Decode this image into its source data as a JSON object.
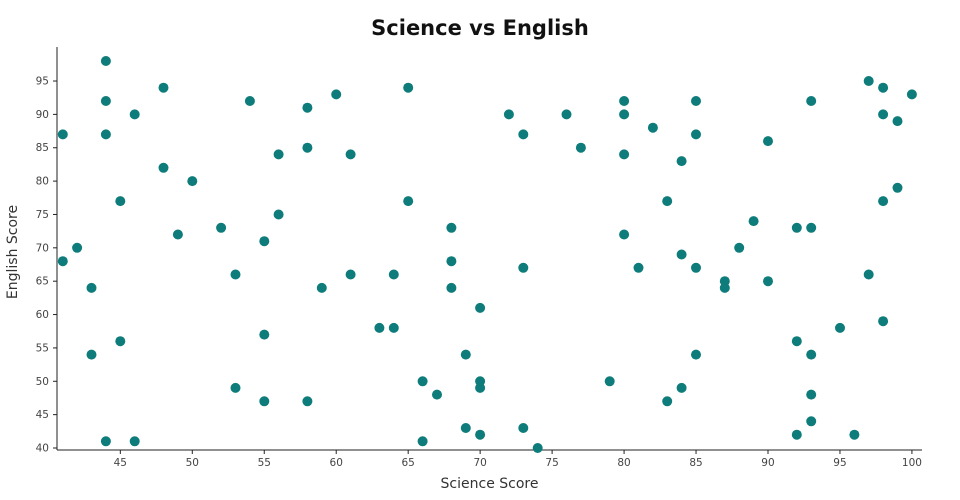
{
  "chart_data": {
    "type": "scatter",
    "title": "Science vs English",
    "xlabel": "Science Score",
    "ylabel": "English Score",
    "xlim": [
      40.6,
      100.7
    ],
    "ylim": [
      39.7,
      98.9
    ],
    "xticks": [
      45,
      50,
      55,
      60,
      65,
      70,
      75,
      80,
      85,
      90,
      95,
      100
    ],
    "yticks": [
      40,
      45,
      50,
      55,
      60,
      65,
      70,
      75,
      80,
      85,
      90,
      95
    ],
    "grid": false,
    "legend": "none",
    "marker_color": "#0e7c7b",
    "axis_color": "#222222",
    "tick_label_color": "#444444",
    "points": [
      [
        41,
        87
      ],
      [
        41,
        68
      ],
      [
        42,
        70
      ],
      [
        43,
        64
      ],
      [
        43,
        54
      ],
      [
        44,
        98
      ],
      [
        44,
        92
      ],
      [
        44,
        87
      ],
      [
        44,
        41
      ],
      [
        45,
        77
      ],
      [
        45,
        56
      ],
      [
        46,
        90
      ],
      [
        46,
        41
      ],
      [
        48,
        94
      ],
      [
        48,
        82
      ],
      [
        49,
        72
      ],
      [
        50,
        80
      ],
      [
        52,
        73
      ],
      [
        53,
        66
      ],
      [
        53,
        49
      ],
      [
        54,
        92
      ],
      [
        55,
        71
      ],
      [
        55,
        57
      ],
      [
        55,
        47
      ],
      [
        56,
        84
      ],
      [
        56,
        75
      ],
      [
        58,
        91
      ],
      [
        58,
        85
      ],
      [
        58,
        47
      ],
      [
        59,
        64
      ],
      [
        60,
        93
      ],
      [
        61,
        84
      ],
      [
        61,
        66
      ],
      [
        63,
        58
      ],
      [
        64,
        66
      ],
      [
        64,
        58
      ],
      [
        65,
        94
      ],
      [
        65,
        77
      ],
      [
        66,
        50
      ],
      [
        66,
        41
      ],
      [
        67,
        48
      ],
      [
        68,
        73
      ],
      [
        68,
        68
      ],
      [
        68,
        64
      ],
      [
        69,
        54
      ],
      [
        69,
        43
      ],
      [
        70,
        61
      ],
      [
        70,
        50
      ],
      [
        70,
        49
      ],
      [
        70,
        42
      ],
      [
        72,
        90
      ],
      [
        73,
        87
      ],
      [
        73,
        67
      ],
      [
        73,
        43
      ],
      [
        74,
        40
      ],
      [
        76,
        90
      ],
      [
        77,
        85
      ],
      [
        79,
        50
      ],
      [
        80,
        92
      ],
      [
        80,
        90
      ],
      [
        80,
        84
      ],
      [
        80,
        72
      ],
      [
        81,
        67
      ],
      [
        82,
        88
      ],
      [
        83,
        77
      ],
      [
        83,
        47
      ],
      [
        84,
        83
      ],
      [
        84,
        69
      ],
      [
        84,
        49
      ],
      [
        85,
        92
      ],
      [
        85,
        87
      ],
      [
        85,
        67
      ],
      [
        85,
        54
      ],
      [
        87,
        65
      ],
      [
        87,
        64
      ],
      [
        88,
        70
      ],
      [
        89,
        74
      ],
      [
        90,
        86
      ],
      [
        90,
        65
      ],
      [
        92,
        73
      ],
      [
        92,
        56
      ],
      [
        92,
        42
      ],
      [
        93,
        92
      ],
      [
        93,
        73
      ],
      [
        93,
        54
      ],
      [
        93,
        48
      ],
      [
        93,
        44
      ],
      [
        95,
        58
      ],
      [
        96,
        42
      ],
      [
        97,
        95
      ],
      [
        97,
        66
      ],
      [
        98,
        94
      ],
      [
        98,
        90
      ],
      [
        98,
        77
      ],
      [
        98,
        59
      ],
      [
        99,
        89
      ],
      [
        99,
        79
      ],
      [
        100,
        93
      ]
    ]
  }
}
